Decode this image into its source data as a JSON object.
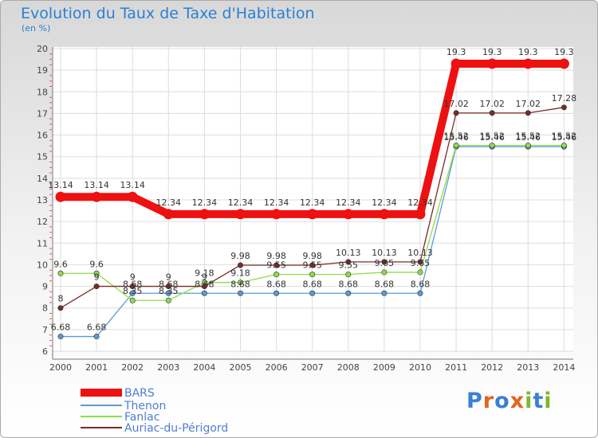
{
  "header": {
    "title": "Evolution du Taux de Taxe d'Habitation",
    "unit": "(en %)"
  },
  "logo": {
    "text": "Proxiti",
    "letter_colors": [
      "#3a7fd6",
      "#e5641c",
      "#3a7fd6",
      "#e5641c",
      "#7ab82c",
      "#3a7fd6",
      "#7ab82c"
    ]
  },
  "chart_data": {
    "type": "line",
    "x": [
      "2000",
      "2001",
      "2002",
      "2003",
      "2004",
      "2005",
      "2006",
      "2007",
      "2008",
      "2009",
      "2010",
      "2011",
      "2012",
      "2013",
      "2014"
    ],
    "ylim": [
      6,
      20
    ],
    "yticks": [
      "6",
      "7",
      "8",
      "9",
      "10",
      "11",
      "12",
      "13",
      "14",
      "15",
      "16",
      "17",
      "18",
      "19",
      "20"
    ],
    "grid": true,
    "legend_position": "bottom-left",
    "series": [
      {
        "name": "BARS",
        "color": "#ee1111",
        "values": [
          13.14,
          13.14,
          13.14,
          12.34,
          12.34,
          12.34,
          12.34,
          12.34,
          12.34,
          12.34,
          12.34,
          19.3,
          19.3,
          19.3,
          19.3
        ],
        "labels": [
          "13.14",
          "13.14",
          "13.14",
          "12.34",
          "12.34",
          "12.34",
          "12.34",
          "12.34",
          "12.34",
          "12.34",
          "12.34",
          "19.3",
          "19.3",
          "19.3",
          "19.3"
        ]
      },
      {
        "name": "Thenon",
        "color": "#5b9bd5",
        "values": [
          6.68,
          6.68,
          8.68,
          8.68,
          8.68,
          8.68,
          8.68,
          8.68,
          8.68,
          8.68,
          8.68,
          15.46,
          15.46,
          15.46,
          15.46
        ],
        "labels": [
          "6.68",
          "6.68",
          "8.68",
          "8.68",
          "8.68",
          "8.68",
          "8.68",
          "8.68",
          "8.68",
          "8.68",
          "8.68",
          "15.46",
          "15.46",
          "15.46",
          "15.46"
        ]
      },
      {
        "name": "Fanlac",
        "color": "#8fdc4a",
        "values": [
          9.6,
          9.6,
          8.35,
          8.35,
          9.18,
          9.18,
          9.55,
          9.55,
          9.55,
          9.65,
          9.65,
          15.52,
          15.52,
          15.52,
          15.52
        ],
        "labels": [
          "9.6",
          "9.6",
          "8.35",
          "8.35",
          "9.18",
          "9.18",
          "9.55",
          "9.55",
          "9.55",
          "9.65",
          "9.65",
          "15.52",
          "15.52",
          "15.52",
          "15.52"
        ]
      },
      {
        "name": "Auriac-du-Périgord",
        "color": "#7a2a2a",
        "values": [
          8,
          9,
          9,
          9,
          9,
          9.98,
          9.98,
          9.98,
          10.13,
          10.13,
          10.13,
          17.02,
          17.02,
          17.02,
          17.28
        ],
        "labels": [
          "8",
          "9",
          "9",
          "9",
          "9",
          "9.98",
          "9.98",
          "9.98",
          "10.13",
          "10.13",
          "10.13",
          "17.02",
          "17.02",
          "17.02",
          "17.28"
        ]
      }
    ]
  }
}
